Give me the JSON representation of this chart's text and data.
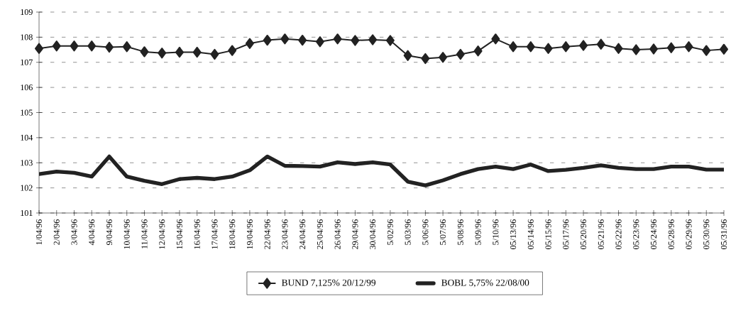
{
  "chart_data": {
    "type": "line",
    "categories": [
      "1/04/96",
      "2/04/96",
      "3/04/96",
      "4/04/96",
      "9/04/96",
      "10/04/96",
      "11/04/96",
      "12/04/96",
      "15/04/96",
      "16/04/96",
      "17/04/96",
      "18/04/96",
      "19/04/96",
      "22/04/96",
      "23/04/96",
      "24/04/96",
      "25/04/96",
      "26/04/96",
      "29/04/96",
      "30/04/96",
      "5/02/96",
      "5/03/96",
      "5/06/96",
      "5/07/96",
      "5/08/96",
      "5/09/96",
      "5/10/96",
      "05/13/96",
      "05/14/96",
      "05/15/96",
      "05/17/96",
      "05/20/96",
      "05/21/96",
      "05/22/96",
      "05/23/96",
      "05/24/96",
      "05/28/96",
      "05/29/96",
      "05/30/96",
      "05/31/96"
    ],
    "series": [
      {
        "name": "BUND 7,125% 20/12/99",
        "color": "#222222",
        "marker": "diamond",
        "values": [
          107.55,
          107.65,
          107.65,
          107.65,
          107.6,
          107.62,
          107.42,
          107.37,
          107.4,
          107.4,
          107.32,
          107.47,
          107.75,
          107.88,
          107.93,
          107.88,
          107.82,
          107.93,
          107.87,
          107.9,
          107.87,
          107.27,
          107.15,
          107.2,
          107.32,
          107.45,
          107.93,
          107.62,
          107.62,
          107.55,
          107.62,
          107.67,
          107.72,
          107.55,
          107.5,
          107.53,
          107.58,
          107.62,
          107.47,
          107.52
        ]
      },
      {
        "name": "BOBL 5,75% 22/08/00",
        "color": "#222222",
        "marker": "none",
        "values": [
          102.55,
          102.65,
          102.6,
          102.45,
          103.25,
          102.45,
          102.28,
          102.15,
          102.35,
          102.4,
          102.35,
          102.45,
          102.7,
          103.25,
          102.88,
          102.87,
          102.85,
          103.02,
          102.95,
          103.02,
          102.93,
          102.25,
          102.1,
          102.3,
          102.55,
          102.75,
          102.85,
          102.75,
          102.93,
          102.67,
          102.72,
          102.8,
          102.9,
          102.8,
          102.75,
          102.75,
          102.85,
          102.85,
          102.73,
          102.73
        ]
      }
    ],
    "ylim": [
      101,
      109
    ],
    "yticks": [
      101,
      102,
      103,
      104,
      105,
      106,
      107,
      108,
      109
    ],
    "grid": "y",
    "legend": "bottom"
  }
}
